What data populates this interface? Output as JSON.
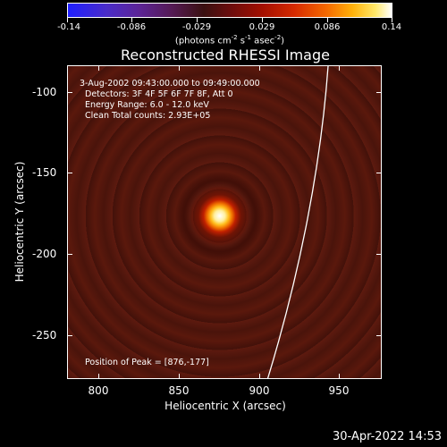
{
  "colorbar": {
    "tick_labels": [
      "-0.14",
      "-0.086",
      "-0.029",
      "0.029",
      "0.086",
      "0.14"
    ],
    "units_prefix": "(photons cm",
    "units_exp1": "-2",
    "units_mid1": " s",
    "units_exp2": "-1",
    "units_mid2": " asec",
    "units_exp3": "-2",
    "units_suffix": ")"
  },
  "title": "Reconstructed RHESSI Image",
  "info": {
    "time_range": "3-Aug-2002 09:43:00.000 to 09:49:00.000",
    "detectors": "Detectors: 3F 4F 5F 6F 7F 8F, Att 0",
    "energy": "Energy Range: 6.0 - 12.0 keV",
    "clean": "Clean    Total counts: 2.93E+05",
    "peak": "Position of Peak = [876,-177]"
  },
  "axes": {
    "xlabel": "Heliocentric X (arcsec)",
    "ylabel": "Heliocentric Y (arcsec)",
    "xticks": [
      "800",
      "850",
      "900",
      "950"
    ],
    "yticks": [
      "-100",
      "-150",
      "-200",
      "-250"
    ]
  },
  "timestamp": "30-Apr-2022 14:53"
}
